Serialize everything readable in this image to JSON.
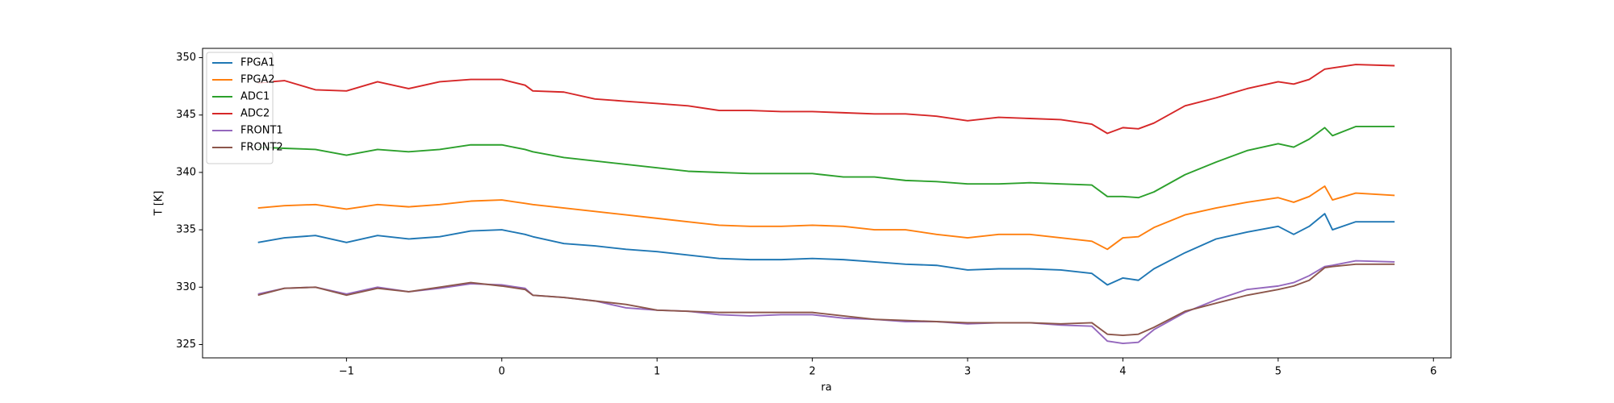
{
  "chart_data": {
    "type": "line",
    "xlabel": "ra",
    "ylabel": "T [K]",
    "x": [
      -1.57,
      -1.4,
      -1.2,
      -1.0,
      -0.8,
      -0.6,
      -0.4,
      -0.2,
      0.0,
      0.15,
      0.2,
      0.4,
      0.6,
      0.8,
      1.0,
      1.2,
      1.4,
      1.6,
      1.8,
      2.0,
      2.2,
      2.4,
      2.6,
      2.8,
      3.0,
      3.2,
      3.4,
      3.6,
      3.8,
      3.9,
      4.0,
      4.1,
      4.2,
      4.4,
      4.6,
      4.8,
      5.0,
      5.1,
      5.2,
      5.3,
      5.35,
      5.5,
      5.75
    ],
    "series": [
      {
        "name": "FPGA1",
        "color": "#1f77b4",
        "values": [
          333.9,
          334.3,
          334.5,
          333.9,
          334.5,
          334.2,
          334.4,
          334.9,
          335.0,
          334.6,
          334.4,
          333.8,
          333.6,
          333.3,
          333.1,
          332.8,
          332.5,
          332.4,
          332.4,
          332.5,
          332.4,
          332.2,
          332.0,
          331.9,
          331.5,
          331.6,
          331.6,
          331.5,
          331.2,
          330.2,
          330.8,
          330.6,
          331.6,
          333.0,
          334.2,
          334.8,
          335.3,
          334.6,
          335.3,
          336.4,
          335.0,
          335.7,
          335.7
        ]
      },
      {
        "name": "FPGA2",
        "color": "#ff7f0e",
        "values": [
          336.9,
          337.1,
          337.2,
          336.8,
          337.2,
          337.0,
          337.2,
          337.5,
          337.6,
          337.3,
          337.2,
          336.9,
          336.6,
          336.3,
          336.0,
          335.7,
          335.4,
          335.3,
          335.3,
          335.4,
          335.3,
          335.0,
          335.0,
          334.6,
          334.3,
          334.6,
          334.6,
          334.3,
          334.0,
          333.3,
          334.3,
          334.4,
          335.2,
          336.3,
          336.9,
          337.4,
          337.8,
          337.4,
          337.9,
          338.8,
          337.6,
          338.2,
          338.0
        ]
      },
      {
        "name": "ADC1",
        "color": "#2ca02c",
        "values": [
          342.2,
          342.1,
          342.0,
          341.5,
          342.0,
          341.8,
          342.0,
          342.4,
          342.4,
          342.0,
          341.8,
          341.3,
          341.0,
          340.7,
          340.4,
          340.1,
          340.0,
          339.9,
          339.9,
          339.9,
          339.6,
          339.6,
          339.3,
          339.2,
          339.0,
          339.0,
          339.1,
          339.0,
          338.9,
          337.9,
          337.9,
          337.8,
          338.3,
          339.8,
          340.9,
          341.9,
          342.5,
          342.2,
          342.9,
          343.9,
          343.2,
          344.0,
          344.0
        ]
      },
      {
        "name": "ADC2",
        "color": "#d62728",
        "values": [
          347.8,
          348.0,
          347.2,
          347.1,
          347.9,
          347.3,
          347.9,
          348.1,
          348.1,
          347.6,
          347.1,
          347.0,
          346.4,
          346.2,
          346.0,
          345.8,
          345.4,
          345.4,
          345.3,
          345.3,
          345.2,
          345.1,
          345.1,
          344.9,
          344.5,
          344.8,
          344.7,
          344.6,
          344.2,
          343.4,
          343.9,
          343.8,
          344.3,
          345.8,
          346.5,
          347.3,
          347.9,
          347.7,
          348.1,
          349.0,
          349.1,
          349.4,
          349.3
        ]
      },
      {
        "name": "FRONT1",
        "color": "#9467bd",
        "values": [
          329.4,
          329.9,
          330.0,
          329.4,
          330.0,
          329.6,
          329.9,
          330.3,
          330.2,
          329.9,
          329.3,
          329.1,
          328.8,
          328.2,
          328.0,
          327.9,
          327.6,
          327.5,
          327.6,
          327.6,
          327.3,
          327.2,
          327.0,
          327.0,
          326.8,
          326.9,
          326.9,
          326.7,
          326.6,
          325.3,
          325.1,
          325.2,
          326.3,
          327.8,
          328.9,
          329.8,
          330.1,
          330.4,
          331.0,
          331.8,
          331.9,
          332.3,
          332.2
        ]
      },
      {
        "name": "FRONT2",
        "color": "#8c564b",
        "values": [
          329.3,
          329.9,
          330.0,
          329.3,
          329.9,
          329.6,
          330.0,
          330.4,
          330.1,
          329.8,
          329.3,
          329.1,
          328.8,
          328.5,
          328.0,
          327.9,
          327.8,
          327.8,
          327.8,
          327.8,
          327.5,
          327.2,
          327.1,
          327.0,
          326.9,
          326.9,
          326.9,
          326.8,
          326.9,
          325.9,
          325.8,
          325.9,
          326.5,
          327.9,
          328.6,
          329.3,
          329.8,
          330.1,
          330.6,
          331.7,
          331.8,
          332.0,
          332.0
        ]
      }
    ],
    "xlim": [
      -1.927,
      6.113
    ],
    "ylim": [
      323.84,
      350.81
    ],
    "xticks": [
      {
        "value": -1,
        "label": "−1"
      },
      0,
      1,
      2,
      3,
      4,
      5,
      6
    ],
    "yticks": [
      325,
      330,
      335,
      340,
      345,
      350
    ],
    "legend": "upper left"
  }
}
